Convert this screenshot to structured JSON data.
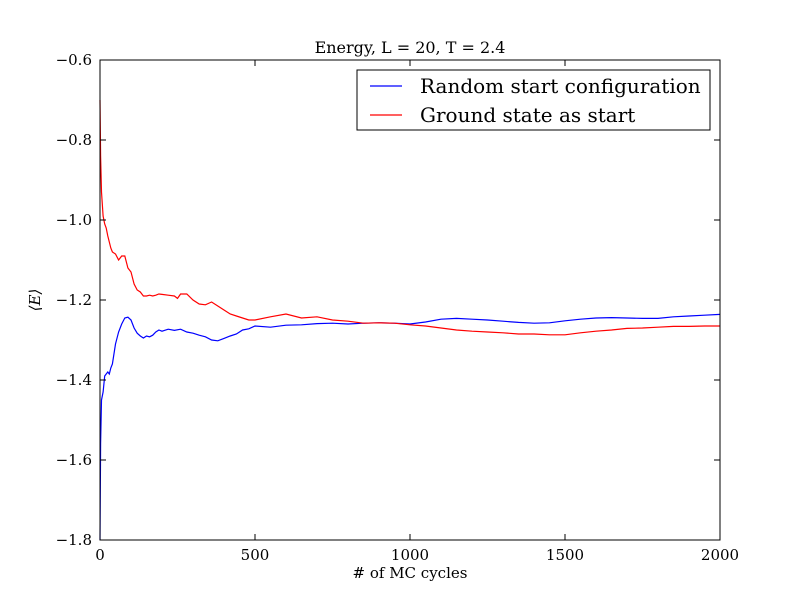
{
  "chart_data": {
    "type": "line",
    "title": "Energy, L = 20, T = 2.4",
    "xlabel": "# of MC cycles",
    "ylabel": "⟨E⟩",
    "xlim": [
      0,
      2000
    ],
    "ylim": [
      -1.8,
      -0.6
    ],
    "xticks": [
      0,
      500,
      1000,
      1500,
      2000
    ],
    "xtick_labels": [
      "0",
      "500",
      "1000",
      "1500",
      "2000"
    ],
    "yticks": [
      -1.8,
      -1.6,
      -1.4,
      -1.2,
      -1.0,
      -0.8,
      -0.6
    ],
    "ytick_labels": [
      "−1.8",
      "−1.6",
      "−1.4",
      "−1.2",
      "−1.0",
      "−0.8",
      "−0.6"
    ],
    "grid": false,
    "legend_position": "top-right",
    "series": [
      {
        "name": "Random start configuration",
        "color": "#0000ff",
        "x": [
          0,
          2,
          5,
          10,
          15,
          20,
          25,
          30,
          35,
          40,
          50,
          60,
          70,
          80,
          90,
          100,
          110,
          120,
          130,
          140,
          150,
          160,
          170,
          180,
          190,
          200,
          220,
          240,
          260,
          280,
          300,
          320,
          340,
          360,
          380,
          400,
          420,
          440,
          460,
          480,
          500,
          550,
          600,
          650,
          700,
          750,
          800,
          850,
          900,
          950,
          1000,
          1050,
          1100,
          1150,
          1200,
          1250,
          1300,
          1350,
          1400,
          1450,
          1500,
          1550,
          1600,
          1650,
          1700,
          1750,
          1800,
          1850,
          1900,
          1950,
          2000
        ],
        "y": [
          -1.8,
          -1.56,
          -1.45,
          -1.43,
          -1.39,
          -1.385,
          -1.38,
          -1.385,
          -1.37,
          -1.36,
          -1.31,
          -1.28,
          -1.26,
          -1.245,
          -1.243,
          -1.25,
          -1.27,
          -1.283,
          -1.29,
          -1.295,
          -1.29,
          -1.292,
          -1.288,
          -1.28,
          -1.275,
          -1.278,
          -1.273,
          -1.276,
          -1.273,
          -1.28,
          -1.283,
          -1.288,
          -1.292,
          -1.3,
          -1.302,
          -1.296,
          -1.29,
          -1.285,
          -1.275,
          -1.272,
          -1.265,
          -1.268,
          -1.263,
          -1.262,
          -1.259,
          -1.258,
          -1.26,
          -1.258,
          -1.257,
          -1.258,
          -1.26,
          -1.255,
          -1.248,
          -1.246,
          -1.248,
          -1.25,
          -1.253,
          -1.256,
          -1.258,
          -1.257,
          -1.252,
          -1.248,
          -1.245,
          -1.244,
          -1.245,
          -1.246,
          -1.246,
          -1.242,
          -1.24,
          -1.238,
          -1.236
        ]
      },
      {
        "name": "Ground state as start",
        "color": "#ff0000",
        "x": [
          0,
          2,
          5,
          10,
          15,
          20,
          25,
          30,
          35,
          40,
          50,
          60,
          70,
          80,
          90,
          100,
          110,
          120,
          130,
          140,
          150,
          160,
          170,
          180,
          190,
          200,
          220,
          240,
          250,
          260,
          280,
          300,
          320,
          340,
          360,
          380,
          400,
          420,
          440,
          460,
          480,
          500,
          550,
          600,
          650,
          700,
          750,
          800,
          850,
          900,
          950,
          1000,
          1050,
          1100,
          1150,
          1200,
          1250,
          1300,
          1350,
          1400,
          1450,
          1500,
          1550,
          1600,
          1650,
          1700,
          1750,
          1800,
          1850,
          1900,
          1950,
          2000
        ],
        "y": [
          -0.7,
          -0.84,
          -0.93,
          -0.99,
          -1.01,
          -1.02,
          -1.04,
          -1.055,
          -1.07,
          -1.08,
          -1.085,
          -1.1,
          -1.09,
          -1.09,
          -1.12,
          -1.13,
          -1.16,
          -1.175,
          -1.18,
          -1.19,
          -1.19,
          -1.188,
          -1.19,
          -1.188,
          -1.185,
          -1.186,
          -1.188,
          -1.19,
          -1.196,
          -1.185,
          -1.185,
          -1.2,
          -1.21,
          -1.212,
          -1.205,
          -1.215,
          -1.225,
          -1.235,
          -1.24,
          -1.245,
          -1.25,
          -1.25,
          -1.242,
          -1.235,
          -1.245,
          -1.242,
          -1.25,
          -1.253,
          -1.258,
          -1.257,
          -1.258,
          -1.262,
          -1.265,
          -1.27,
          -1.275,
          -1.278,
          -1.28,
          -1.282,
          -1.285,
          -1.285,
          -1.287,
          -1.287,
          -1.282,
          -1.278,
          -1.275,
          -1.271,
          -1.27,
          -1.268,
          -1.266,
          -1.266,
          -1.265,
          -1.265
        ]
      }
    ]
  }
}
